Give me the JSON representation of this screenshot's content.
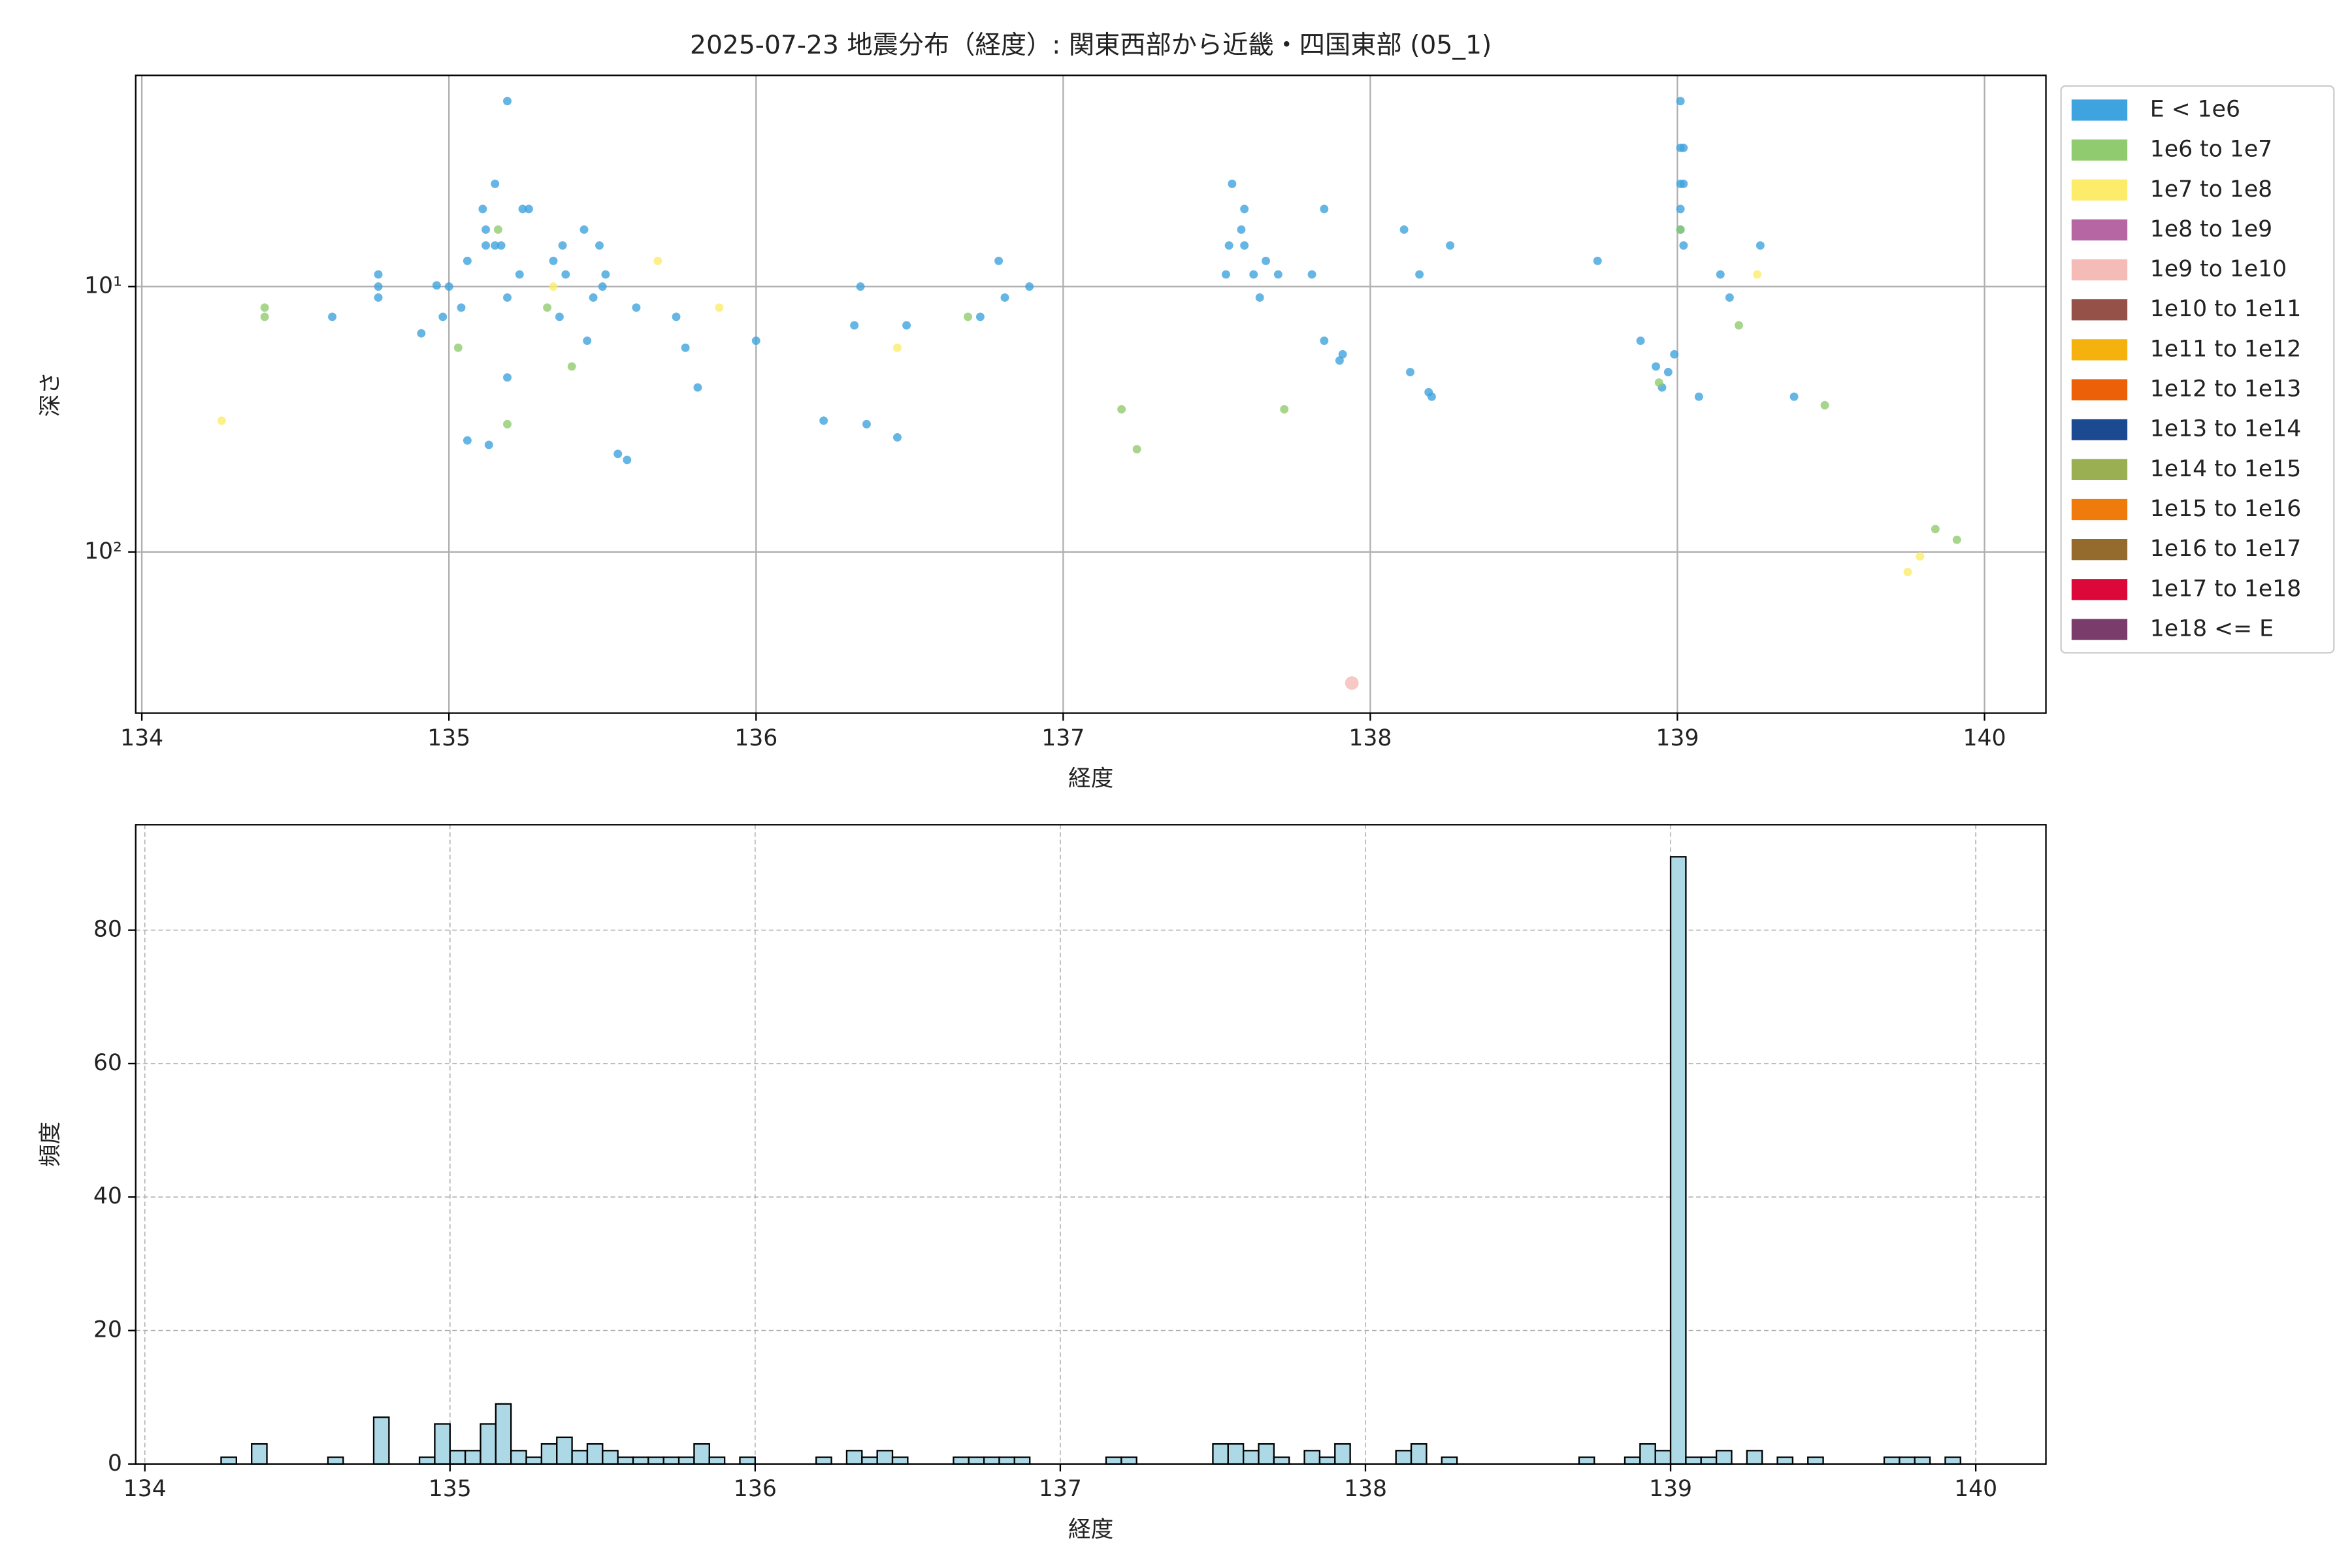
{
  "chart_data": [
    {
      "type": "scatter",
      "title": "2025-07-23 地震分布（経度）: 関東西部から近畿・四国東部 (05_1)",
      "xlabel": "経度",
      "ylabel": "深さ",
      "xlim": [
        133.98,
        140.2
      ],
      "xticks": [
        134,
        135,
        136,
        137,
        138,
        139,
        140
      ],
      "ylim": [
        1.6,
        405
      ],
      "yticks": [
        {
          "value": 10,
          "label": "10¹"
        },
        {
          "value": 100,
          "label": "10²"
        }
      ],
      "ylog": true,
      "y_inverted": true,
      "grid": true,
      "legend": "outside-right",
      "series": [
        {
          "name": "E < 1e6",
          "color": "#3ea3de",
          "x": [
            134.62,
            134.77,
            134.77,
            134.77,
            134.91,
            134.96,
            134.98,
            135.0,
            135.04,
            135.06,
            135.06,
            135.11,
            135.12,
            135.12,
            135.13,
            135.15,
            135.15,
            135.17,
            135.19,
            135.19,
            135.19,
            135.23,
            135.24,
            135.26,
            135.34,
            135.36,
            135.37,
            135.38,
            135.44,
            135.45,
            135.47,
            135.49,
            135.5,
            135.51,
            135.55,
            135.58,
            135.61,
            135.74,
            135.77,
            135.81,
            136.0,
            136.22,
            136.32,
            136.34,
            136.36,
            136.46,
            136.49,
            136.73,
            136.79,
            136.81,
            136.89,
            137.53,
            137.54,
            137.55,
            137.58,
            137.59,
            137.59,
            137.62,
            137.64,
            137.66,
            137.7,
            137.81,
            137.85,
            137.85,
            137.9,
            137.91,
            138.11,
            138.13,
            138.16,
            138.19,
            138.2,
            138.26,
            138.74,
            138.88,
            138.93,
            138.95,
            138.97,
            138.99,
            139.01,
            139.01,
            139.02,
            139.01,
            139.02,
            139.01,
            139.01,
            139.02,
            139.07,
            139.14,
            139.17,
            139.27,
            139.38
          ],
          "y": [
            13,
            9,
            10,
            11,
            15,
            9.9,
            13,
            10,
            12,
            8,
            38,
            5.1,
            6.1,
            7,
            39.5,
            4.1,
            7,
            7,
            2,
            11,
            22,
            9,
            5.1,
            5.1,
            8,
            13,
            7,
            9,
            6.1,
            16,
            11,
            7,
            10,
            9,
            42.7,
            45,
            12,
            13,
            17,
            24,
            16,
            32,
            14,
            10,
            33,
            37,
            14,
            13,
            8,
            11,
            10,
            9,
            7,
            4.1,
            6.1,
            7,
            5.1,
            9,
            11,
            8,
            9,
            9,
            16,
            5.1,
            19,
            18,
            6.1,
            21,
            9,
            25,
            26,
            7,
            8,
            16,
            20,
            24,
            21,
            18,
            2,
            3,
            3,
            4.1,
            4.1,
            5.1,
            6.1,
            7,
            26,
            9,
            11,
            7,
            26
          ]
        },
        {
          "name": "1e6 to 1e7",
          "color": "#91cb6f",
          "x": [
            134.4,
            134.4,
            135.03,
            135.16,
            135.19,
            135.32,
            135.4,
            136.69,
            137.19,
            137.24,
            137.72,
            138.94,
            139.01,
            139.2,
            139.48,
            139.84,
            139.91
          ],
          "y": [
            12,
            13,
            17,
            6.1,
            33,
            12,
            20,
            13,
            29,
            41,
            29,
            23,
            6.1,
            14,
            28,
            82,
            90
          ]
        },
        {
          "name": "1e7 to 1e8",
          "color": "#fdec6a",
          "x": [
            134.26,
            135.34,
            135.68,
            135.88,
            136.46,
            139.26,
            139.75,
            139.79
          ],
          "y": [
            32,
            10,
            8,
            12,
            17,
            9,
            119,
            104
          ]
        },
        {
          "name": "1e8 to 1e9",
          "color": "#b566a3",
          "x": [],
          "y": []
        },
        {
          "name": "1e9 to 1e10",
          "color": "#f5bcb7",
          "x": [
            137.94
          ],
          "y": [
            312
          ]
        },
        {
          "name": "1e10 to 1e11",
          "color": "#955048",
          "x": [],
          "y": []
        },
        {
          "name": "1e11 to 1e12",
          "color": "#f5b10e",
          "x": [],
          "y": []
        },
        {
          "name": "1e12 to 1e13",
          "color": "#ec6107",
          "x": [],
          "y": []
        },
        {
          "name": "1e13 to 1e14",
          "color": "#1b4a90",
          "x": [],
          "y": []
        },
        {
          "name": "1e14 to 1e15",
          "color": "#9aae52",
          "x": [],
          "y": []
        },
        {
          "name": "1e15 to 1e16",
          "color": "#ee7b0c",
          "x": [],
          "y": []
        },
        {
          "name": "1e16 to 1e17",
          "color": "#946b2d",
          "x": [],
          "y": []
        },
        {
          "name": "1e17 to 1e18",
          "color": "#dc0839",
          "x": [],
          "y": []
        },
        {
          "name": "1e18 <= E",
          "color": "#793c6b",
          "x": [],
          "y": []
        }
      ]
    },
    {
      "type": "histogram",
      "xlabel": "経度",
      "ylabel": "頻度",
      "xlim": [
        133.97,
        140.23
      ],
      "xticks": [
        134,
        135,
        136,
        137,
        138,
        139,
        140
      ],
      "ylim": [
        0,
        95.8
      ],
      "yticks": [
        0,
        20,
        40,
        60,
        80
      ],
      "grid": true,
      "color": "#add8e6",
      "edgecolor": "#000000",
      "bins": [
        134.25,
        134.3,
        134.35,
        134.4,
        134.45,
        134.5,
        134.55,
        134.6,
        134.65,
        134.7,
        134.75,
        134.8,
        134.85,
        134.9,
        134.95,
        135.0,
        135.05,
        135.1,
        135.15,
        135.2,
        135.25,
        135.3,
        135.35,
        135.4,
        135.45,
        135.5,
        135.55,
        135.6,
        135.65,
        135.7,
        135.75,
        135.8,
        135.85,
        135.9,
        135.95,
        136.0,
        136.05,
        136.1,
        136.15,
        136.2,
        136.25,
        136.3,
        136.35,
        136.4,
        136.45,
        136.5,
        136.55,
        136.6,
        136.65,
        136.7,
        136.75,
        136.8,
        136.85,
        136.9,
        136.95,
        137.0,
        137.05,
        137.1,
        137.15,
        137.2,
        137.25,
        137.3,
        137.35,
        137.4,
        137.45,
        137.5,
        137.55,
        137.6,
        137.65,
        137.7,
        137.75,
        137.8,
        137.85,
        137.9,
        137.95,
        138.0,
        138.05,
        138.1,
        138.15,
        138.2,
        138.25,
        138.3,
        138.35,
        138.4,
        138.45,
        138.5,
        138.55,
        138.6,
        138.65,
        138.7,
        138.75,
        138.8,
        138.85,
        138.9,
        138.95,
        139.0,
        139.05,
        139.1,
        139.15,
        139.2,
        139.25,
        139.3,
        139.35,
        139.4,
        139.45,
        139.5,
        139.55,
        139.6,
        139.65,
        139.7,
        139.75,
        139.8,
        139.85,
        139.9,
        139.95
      ],
      "counts": [
        1,
        0,
        3,
        0,
        0,
        0,
        0,
        1,
        0,
        0,
        7,
        0,
        0,
        1,
        6,
        2,
        2,
        6,
        9,
        2,
        1,
        3,
        4,
        2,
        3,
        2,
        1,
        1,
        1,
        1,
        1,
        3,
        1,
        0,
        1,
        0,
        0,
        0,
        0,
        1,
        0,
        2,
        1,
        2,
        1,
        0,
        0,
        0,
        1,
        1,
        1,
        1,
        1,
        0,
        0,
        0,
        0,
        0,
        1,
        1,
        0,
        0,
        0,
        0,
        0,
        3,
        3,
        2,
        3,
        1,
        0,
        2,
        1,
        3,
        0,
        0,
        0,
        2,
        3,
        0,
        1,
        0,
        0,
        0,
        0,
        0,
        0,
        0,
        0,
        1,
        0,
        0,
        1,
        3,
        2,
        91,
        1,
        1,
        2,
        0,
        2,
        0,
        1,
        0,
        1,
        0,
        0,
        0,
        0,
        1,
        1,
        1,
        0,
        1
      ]
    }
  ]
}
